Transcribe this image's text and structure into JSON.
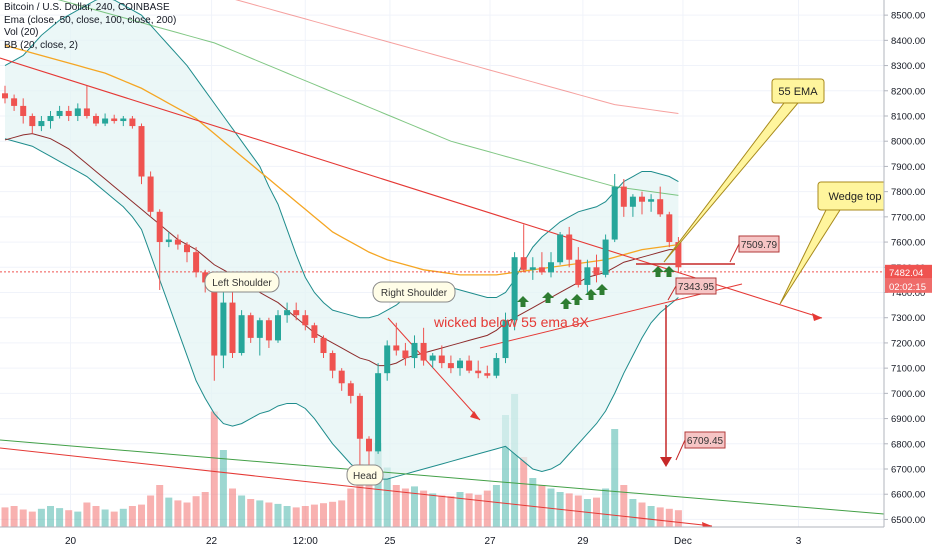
{
  "header": {
    "symbol_line": "Bitcoin / U.S. Dollar, 240, COINBASE",
    "indicators": [
      "Ema (close, 50, close, 100, close, 200)",
      "Vol (20)",
      "BB (20, close, 2)"
    ]
  },
  "colors": {
    "up": "#26a69a",
    "down": "#ef5350",
    "ema50": "#f5a623",
    "ema100": "#4caf50",
    "ema200": "#ef5350",
    "bb": "#1e8c8c",
    "trend": "#e53935",
    "annotation_fill": "#fff59d",
    "arrow_green": "#2e7d32"
  },
  "chart_data": {
    "type": "candlestick",
    "y_ticks": [
      "8500.00",
      "8400.00",
      "8300.00",
      "8200.00",
      "8100.00",
      "8000.00",
      "7900.00",
      "7800.00",
      "7700.00",
      "7600.00",
      "7500.00",
      "7400.00",
      "7300.00",
      "7200.00",
      "7100.00",
      "7000.00",
      "6900.00",
      "6800.00",
      "6700.00",
      "6600.00",
      "6500.00"
    ],
    "ylim": [
      6470,
      8560
    ],
    "x_ticks": [
      "20",
      "22",
      "12:00",
      "25",
      "27",
      "29",
      "Dec",
      "3"
    ],
    "price_label": "7482.04",
    "countdown_label": "02:02:15",
    "callouts": [
      "55 EMA",
      "Wedge top t"
    ],
    "annotations": {
      "left_shoulder": "Left Shoulder",
      "right_shoulder": "Right Shoulder",
      "head": "Head",
      "wick_note": "wicked below 55 ema 8X"
    },
    "price_tags": [
      "7509.79",
      "7343.95",
      "6709.45"
    ],
    "candles": [
      [
        8190,
        8220,
        8150,
        8170
      ],
      [
        8170,
        8185,
        8120,
        8140
      ],
      [
        8140,
        8170,
        8070,
        8100
      ],
      [
        8100,
        8110,
        8030,
        8060
      ],
      [
        8060,
        8100,
        8040,
        8080
      ],
      [
        8080,
        8120,
        8050,
        8100
      ],
      [
        8100,
        8140,
        8090,
        8120
      ],
      [
        8120,
        8140,
        8080,
        8100
      ],
      [
        8100,
        8150,
        8080,
        8130
      ],
      [
        8130,
        8220,
        8090,
        8100
      ],
      [
        8100,
        8110,
        8060,
        8070
      ],
      [
        8070,
        8110,
        8060,
        8090
      ],
      [
        8090,
        8105,
        8070,
        8080
      ],
      [
        8080,
        8100,
        8060,
        8090
      ],
      [
        8090,
        8100,
        8050,
        8060
      ],
      [
        8060,
        8070,
        7830,
        7860
      ],
      [
        7860,
        7880,
        7700,
        7720
      ],
      [
        7720,
        7730,
        7410,
        7600
      ],
      [
        7600,
        7640,
        7580,
        7610
      ],
      [
        7610,
        7630,
        7570,
        7590
      ],
      [
        7590,
        7600,
        7520,
        7560
      ],
      [
        7560,
        7580,
        7460,
        7480
      ],
      [
        7480,
        7490,
        7400,
        7440
      ],
      [
        7440,
        7450,
        7050,
        7150
      ],
      [
        7150,
        7400,
        7100,
        7360
      ],
      [
        7360,
        7430,
        7140,
        7160
      ],
      [
        7160,
        7330,
        7150,
        7310
      ],
      [
        7310,
        7320,
        7200,
        7220
      ],
      [
        7220,
        7300,
        7150,
        7290
      ],
      [
        7290,
        7300,
        7180,
        7210
      ],
      [
        7210,
        7330,
        7200,
        7310
      ],
      [
        7310,
        7360,
        7280,
        7330
      ],
      [
        7330,
        7360,
        7290,
        7310
      ],
      [
        7310,
        7330,
        7250,
        7270
      ],
      [
        7270,
        7280,
        7200,
        7220
      ],
      [
        7220,
        7230,
        7140,
        7160
      ],
      [
        7160,
        7170,
        7060,
        7090
      ],
      [
        7090,
        7100,
        7010,
        7040
      ],
      [
        7040,
        7050,
        6960,
        6990
      ],
      [
        6990,
        7000,
        6700,
        6820
      ],
      [
        6820,
        6830,
        6680,
        6770
      ],
      [
        6770,
        7120,
        6760,
        7080
      ],
      [
        7080,
        7210,
        7050,
        7190
      ],
      [
        7190,
        7280,
        7150,
        7170
      ],
      [
        7170,
        7200,
        7110,
        7140
      ],
      [
        7140,
        7230,
        7100,
        7200
      ],
      [
        7200,
        7260,
        7110,
        7130
      ],
      [
        7130,
        7160,
        7100,
        7150
      ],
      [
        7150,
        7190,
        7100,
        7120
      ],
      [
        7120,
        7150,
        7080,
        7100
      ],
      [
        7100,
        7140,
        7070,
        7130
      ],
      [
        7130,
        7150,
        7080,
        7090
      ],
      [
        7090,
        7130,
        7060,
        7080
      ],
      [
        7080,
        7110,
        7060,
        7070
      ],
      [
        7070,
        7160,
        7060,
        7140
      ],
      [
        7140,
        7320,
        7120,
        7290
      ],
      [
        7290,
        7560,
        7250,
        7540
      ],
      [
        7540,
        7670,
        7480,
        7490
      ],
      [
        7490,
        7540,
        7450,
        7500
      ],
      [
        7500,
        7560,
        7470,
        7480
      ],
      [
        7480,
        7560,
        7460,
        7520
      ],
      [
        7520,
        7640,
        7510,
        7630
      ],
      [
        7630,
        7660,
        7500,
        7530
      ],
      [
        7530,
        7580,
        7420,
        7430
      ],
      [
        7430,
        7530,
        7400,
        7500
      ],
      [
        7500,
        7550,
        7440,
        7470
      ],
      [
        7470,
        7630,
        7460,
        7610
      ],
      [
        7610,
        7870,
        7600,
        7820
      ],
      [
        7820,
        7850,
        7700,
        7740
      ],
      [
        7740,
        7790,
        7700,
        7780
      ],
      [
        7780,
        7800,
        7710,
        7760
      ],
      [
        7760,
        7790,
        7720,
        7770
      ],
      [
        7770,
        7820,
        7700,
        7710
      ],
      [
        7710,
        7720,
        7580,
        7600
      ],
      [
        7600,
        7620,
        7480,
        7500
      ]
    ],
    "volume": [
      28,
      30,
      25,
      22,
      26,
      30,
      27,
      24,
      22,
      35,
      30,
      25,
      22,
      26,
      30,
      32,
      45,
      60,
      42,
      38,
      35,
      44,
      50,
      165,
      110,
      55,
      45,
      40,
      38,
      35,
      33,
      30,
      28,
      30,
      32,
      34,
      36,
      38,
      55,
      90,
      70,
      120,
      85,
      60,
      55,
      58,
      52,
      48,
      45,
      44,
      50,
      48,
      46,
      52,
      60,
      160,
      190,
      100,
      70,
      60,
      55,
      50,
      48,
      45,
      40,
      42,
      55,
      140,
      60,
      40,
      35,
      30,
      28,
      26,
      24
    ],
    "sma_series": [
      8005,
      8015,
      8025,
      8030,
      8020,
      8010,
      7990,
      7970,
      7940,
      7910,
      7880,
      7850,
      7820,
      7790,
      7760,
      7730,
      7700,
      7670,
      7640,
      7610,
      7590,
      7570,
      7540,
      7510,
      7490,
      7470,
      7450,
      7420,
      7400,
      7380,
      7360,
      7330,
      7300,
      7270,
      7240,
      7220,
      7200,
      7180,
      7160,
      7140,
      7130,
      7110,
      7110,
      7120,
      7140,
      7150,
      7160,
      7170,
      7180,
      7190,
      7200,
      7210,
      7220,
      7230,
      7250,
      7280,
      7300,
      7320,
      7340,
      7360,
      7380,
      7400,
      7420,
      7440,
      7460,
      7470,
      7480,
      7500,
      7520,
      7530,
      7540,
      7550,
      7560,
      7570,
      7570
    ],
    "ema50_series": [
      8380,
      8370,
      8360,
      8350,
      8340,
      8330,
      8320,
      8310,
      8300,
      8290,
      8280,
      8270,
      8255,
      8240,
      8225,
      8210,
      8190,
      8170,
      8150,
      8130,
      8110,
      8090,
      8060,
      8030,
      8000,
      7970,
      7940,
      7910,
      7880,
      7850,
      7820,
      7790,
      7760,
      7730,
      7700,
      7670,
      7640,
      7620,
      7600,
      7580,
      7560,
      7545,
      7530,
      7520,
      7510,
      7500,
      7490,
      7485,
      7480,
      7475,
      7470,
      7470,
      7470,
      7470,
      7470,
      7475,
      7480,
      7485,
      7490,
      7495,
      7500,
      7505,
      7510,
      7515,
      7520,
      7525,
      7530,
      7540,
      7550,
      7560,
      7570,
      7575,
      7580,
      7585,
      7590
    ],
    "ema100_series": [
      8620,
      8610,
      8600,
      8590,
      8580,
      8570,
      8560,
      8550,
      8540,
      8530,
      8520,
      8510,
      8500,
      8490,
      8480,
      8470,
      8460,
      8450,
      8440,
      8430,
      8420,
      8410,
      8400,
      8390,
      8375,
      8360,
      8345,
      8330,
      8315,
      8300,
      8285,
      8270,
      8255,
      8240,
      8225,
      8210,
      8195,
      8180,
      8165,
      8150,
      8135,
      8120,
      8105,
      8090,
      8075,
      8060,
      8045,
      8030,
      8015,
      8000,
      7990,
      7980,
      7970,
      7960,
      7950,
      7940,
      7930,
      7920,
      7910,
      7900,
      7890,
      7880,
      7870,
      7860,
      7850,
      7840,
      7830,
      7820,
      7815,
      7810,
      7805,
      7800,
      7795,
      7790,
      7785
    ],
    "ema200_series": [
      8700,
      8695,
      8690,
      8685,
      8680,
      8675,
      8670,
      8665,
      8660,
      8655,
      8650,
      8645,
      8640,
      8635,
      8630,
      8625,
      8620,
      8615,
      8610,
      8605,
      8600,
      8595,
      8590,
      8585,
      8575,
      8565,
      8555,
      8545,
      8535,
      8525,
      8515,
      8505,
      8495,
      8485,
      8475,
      8465,
      8455,
      8445,
      8435,
      8425,
      8415,
      8405,
      8395,
      8385,
      8375,
      8365,
      8355,
      8345,
      8335,
      8325,
      8315,
      8305,
      8295,
      8285,
      8275,
      8265,
      8255,
      8245,
      8235,
      8225,
      8215,
      8205,
      8195,
      8185,
      8175,
      8165,
      8155,
      8145,
      8140,
      8135,
      8130,
      8125,
      8120,
      8115,
      8110
    ],
    "bb_upper": [
      8300,
      8320,
      8340,
      8380,
      8420,
      8450,
      8480,
      8500,
      8520,
      8540,
      8560,
      8570,
      8560,
      8540,
      8520,
      8500,
      8460,
      8420,
      8380,
      8340,
      8300,
      8250,
      8200,
      8150,
      8100,
      8050,
      8000,
      7950,
      7900,
      7820,
      7750,
      7650,
      7550,
      7460,
      7400,
      7360,
      7330,
      7320,
      7310,
      7300,
      7300,
      7310,
      7330,
      7350,
      7380,
      7400,
      7410,
      7420,
      7420,
      7420,
      7410,
      7400,
      7390,
      7380,
      7380,
      7400,
      7450,
      7520,
      7580,
      7620,
      7650,
      7680,
      7700,
      7720,
      7730,
      7740,
      7760,
      7800,
      7840,
      7860,
      7880,
      7880,
      7870,
      7860,
      7840
    ],
    "bb_lower": [
      8010,
      8000,
      7990,
      7980,
      7960,
      7940,
      7920,
      7900,
      7880,
      7860,
      7830,
      7800,
      7770,
      7740,
      7700,
      7650,
      7550,
      7450,
      7350,
      7250,
      7150,
      7050,
      6980,
      6920,
      6880,
      6870,
      6880,
      6900,
      6920,
      6930,
      6950,
      6960,
      6960,
      6940,
      6900,
      6850,
      6800,
      6760,
      6720,
      6690,
      6670,
      6660,
      6660,
      6670,
      6680,
      6690,
      6700,
      6710,
      6720,
      6730,
      6740,
      6750,
      6760,
      6770,
      6780,
      6790,
      6760,
      6730,
      6700,
      6690,
      6700,
      6720,
      6760,
      6800,
      6840,
      6880,
      6930,
      7000,
      7080,
      7150,
      7220,
      7280,
      7320,
      7350,
      7380
    ]
  }
}
